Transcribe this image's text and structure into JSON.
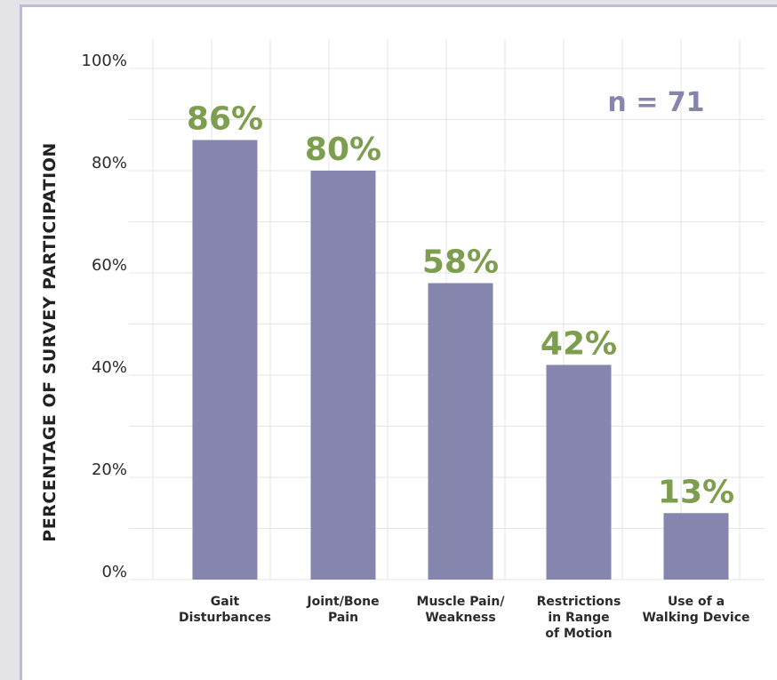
{
  "colors": {
    "bar": "#8585ad",
    "data_label": "#7d9e4e",
    "annotation": "#8585ad",
    "grid": "#e6e6e6"
  },
  "chart_data": {
    "type": "bar",
    "categories": [
      [
        "Gait",
        "Disturbances"
      ],
      [
        "Joint/Bone",
        "Pain"
      ],
      [
        "Muscle Pain/",
        "Weakness"
      ],
      [
        "Restrictions",
        "in Range",
        "of Motion"
      ],
      [
        "Use of a",
        "Walking Device"
      ]
    ],
    "values": [
      86,
      80,
      58,
      42,
      13
    ],
    "data_labels": [
      "86%",
      "80%",
      "58%",
      "42%",
      "13%"
    ],
    "ylabel": "PERCENTAGE OF SURVEY PARTICIPATION",
    "xlabel": "",
    "ylim": [
      0,
      100
    ],
    "yticks": [
      0,
      20,
      40,
      60,
      80,
      100
    ],
    "ytick_labels": [
      "0%",
      "20%",
      "40%",
      "60%",
      "80%",
      "100%"
    ],
    "annotation": "n = 71",
    "grid": true
  }
}
